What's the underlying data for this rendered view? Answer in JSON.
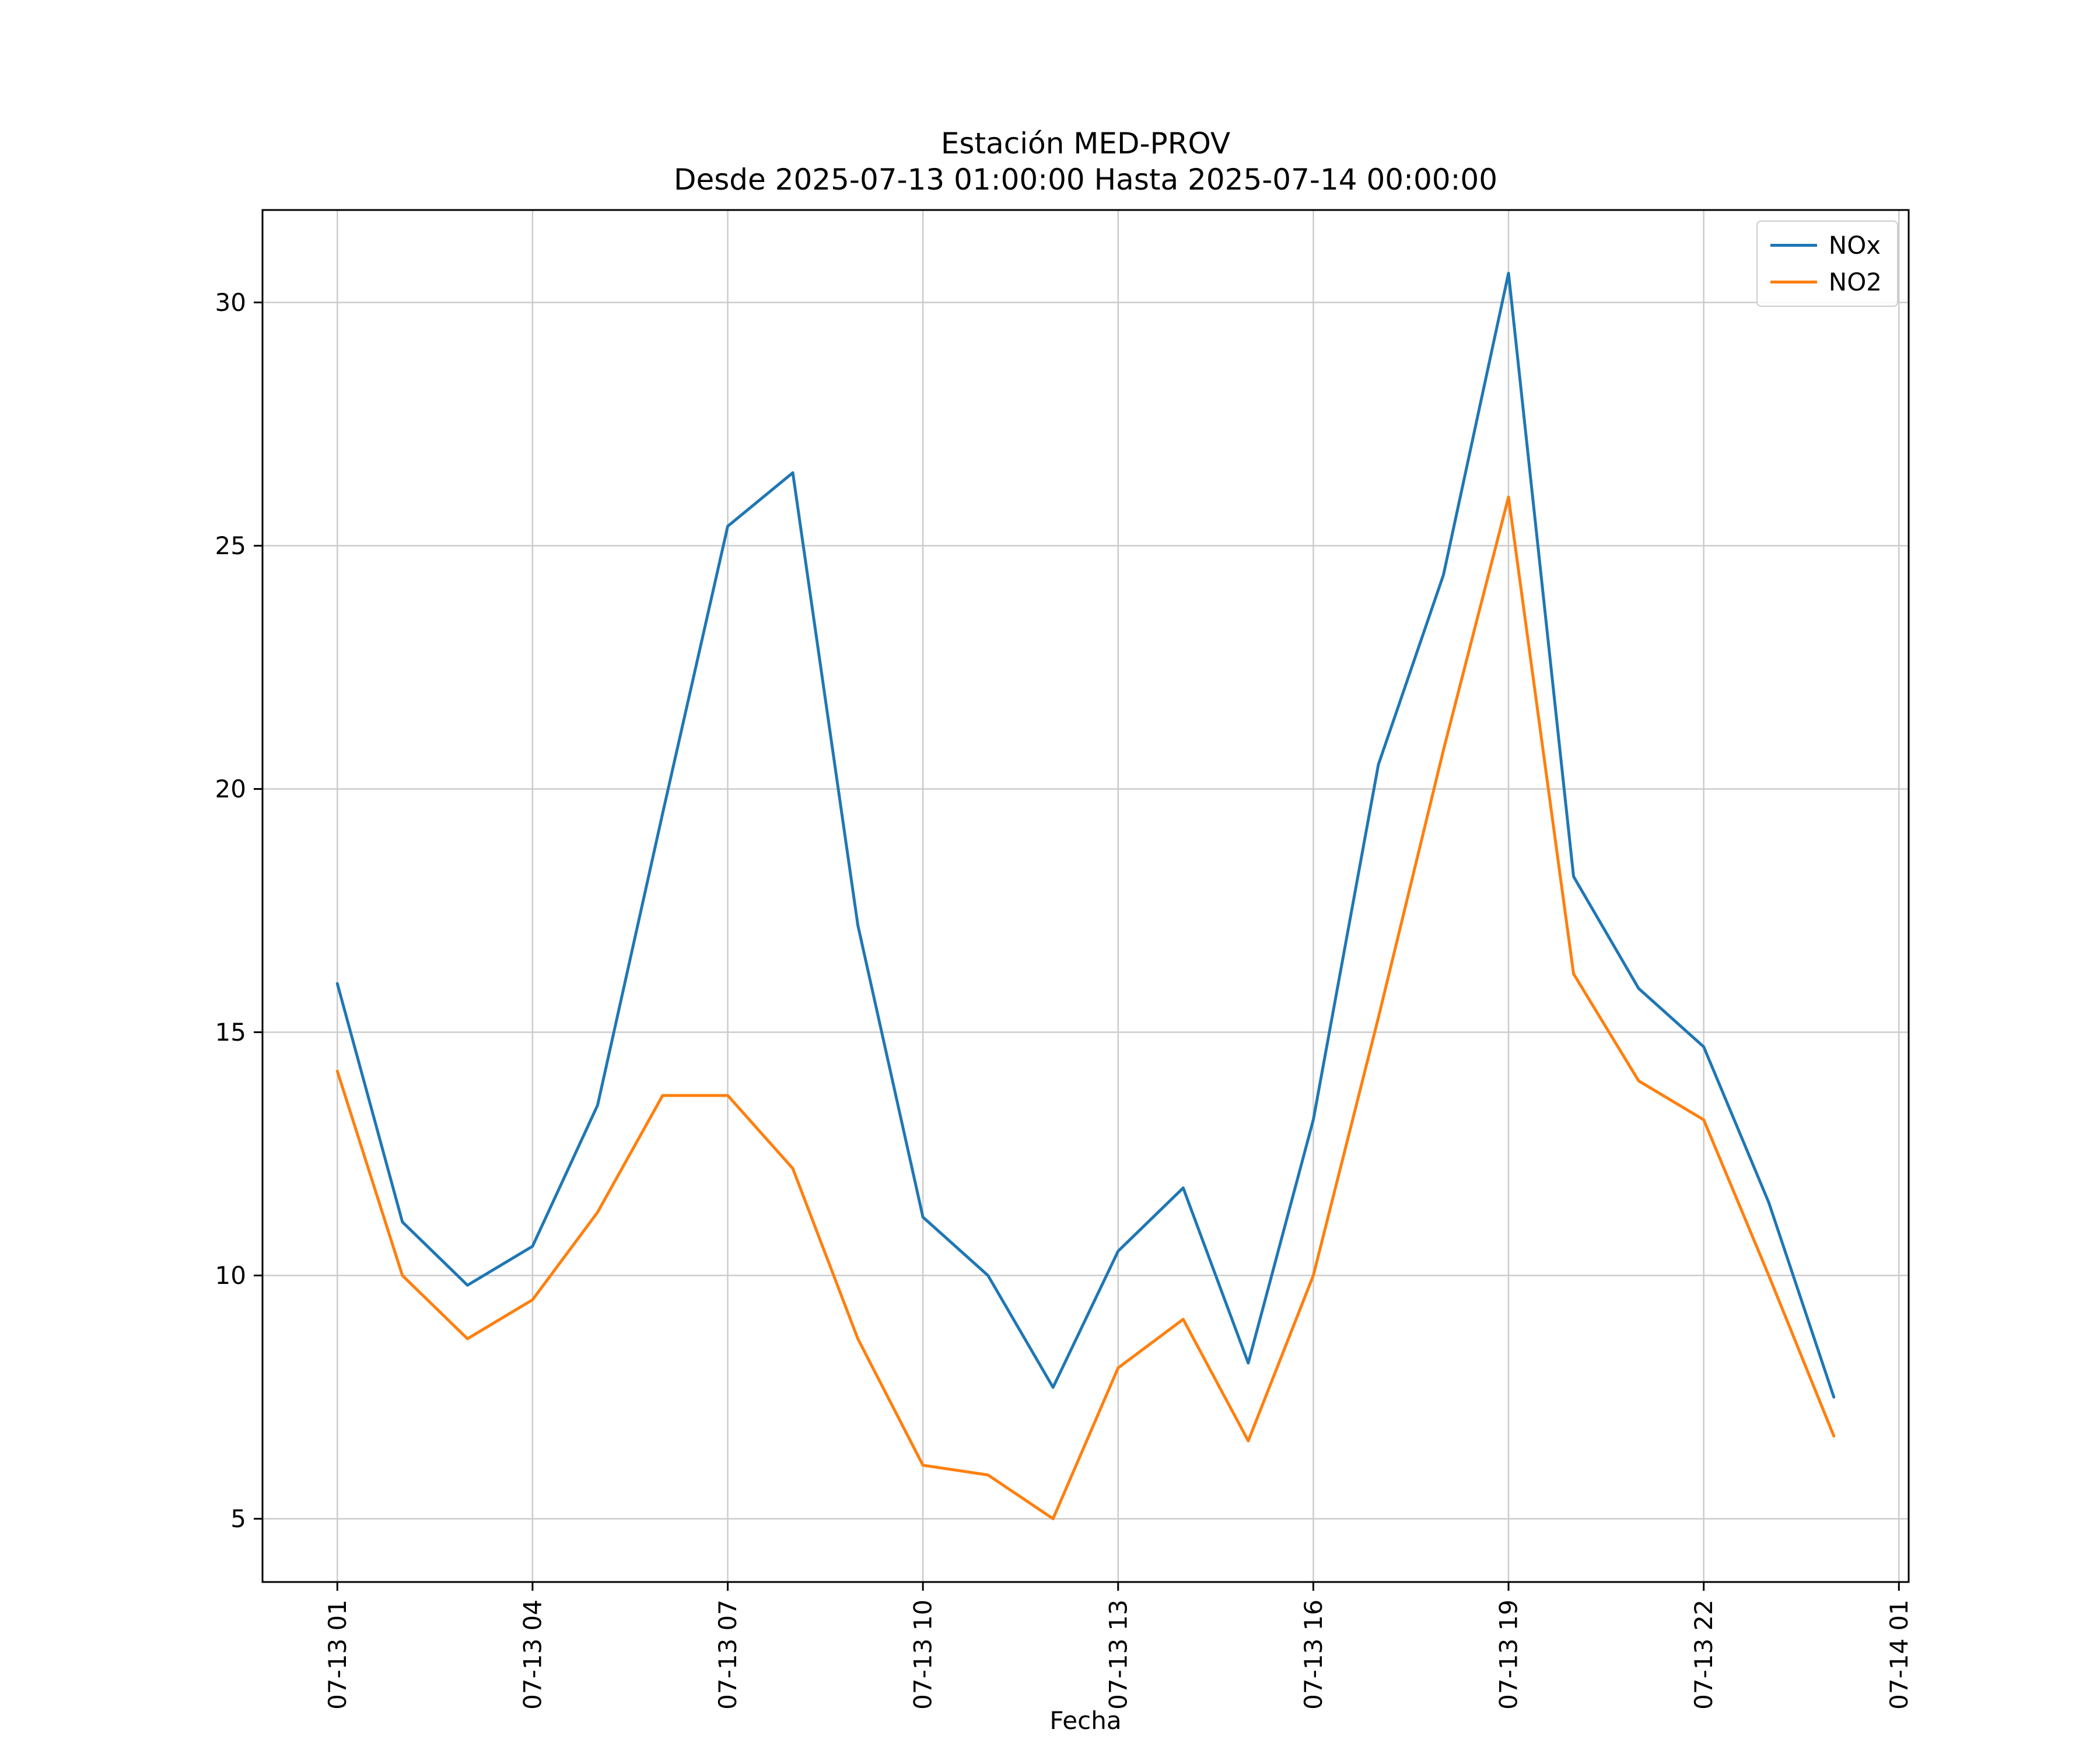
{
  "title": "Estación MED-PROV",
  "subtitle": "Desde 2025-07-13 01:00:00 Hasta 2025-07-14 00:00:00",
  "chart_data": {
    "type": "line",
    "title": "Estación MED-PROV",
    "subtitle": "Desde 2025-07-13 01:00:00 Hasta 2025-07-14 00:00:00",
    "xlabel": "Fecha",
    "ylabel": "",
    "grid": true,
    "legend_position": "upper right",
    "xlim": [
      -0.15,
      25.15
    ],
    "ylim": [
      3.7,
      31.9
    ],
    "x_hours": [
      1,
      2,
      3,
      4,
      5,
      6,
      7,
      8,
      9,
      10,
      11,
      12,
      13,
      14,
      15,
      16,
      17,
      18,
      19,
      20,
      21,
      22,
      23,
      24
    ],
    "x_tick_values": [
      1,
      4,
      7,
      10,
      13,
      16,
      19,
      22,
      25
    ],
    "x_tick_labels": [
      "07-13 01",
      "07-13 04",
      "07-13 07",
      "07-13 10",
      "07-13 13",
      "07-13 16",
      "07-13 19",
      "07-13 22",
      "07-14 01"
    ],
    "y_ticks": [
      5,
      10,
      15,
      20,
      25,
      30
    ],
    "series": [
      {
        "name": "NOx",
        "color": "#1f77b4",
        "values": [
          16.0,
          11.1,
          9.8,
          10.6,
          13.5,
          19.5,
          25.4,
          26.5,
          17.2,
          11.2,
          10.0,
          7.7,
          10.5,
          11.8,
          8.2,
          13.2,
          20.5,
          24.4,
          30.6,
          18.2,
          15.9,
          14.7,
          11.5,
          7.5
        ]
      },
      {
        "name": "NO2",
        "color": "#ff7f0e",
        "values": [
          14.2,
          10.0,
          8.7,
          9.5,
          11.3,
          13.7,
          13.7,
          12.2,
          8.7,
          6.1,
          5.9,
          5.0,
          8.1,
          9.1,
          6.6,
          10.0,
          15.3,
          20.8,
          26.0,
          16.2,
          14.0,
          13.2,
          10.0,
          6.7
        ]
      }
    ]
  }
}
